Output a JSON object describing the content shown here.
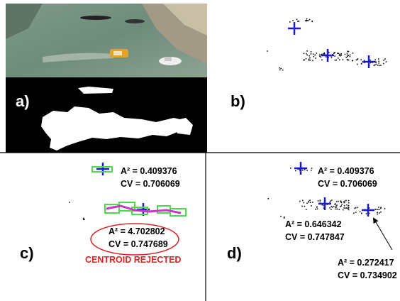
{
  "panels": {
    "a": {
      "label": "a)"
    },
    "b": {
      "label": "b)"
    },
    "c": {
      "label": "c)",
      "clusters": [
        {
          "a2": "A² = 0.409376",
          "cv": "CV = 0.706069"
        },
        {
          "a2": "A² = 4.702802",
          "cv": "CV = 0.747689",
          "status": "CENTROID REJECTED"
        }
      ]
    },
    "d": {
      "label": "d)",
      "clusters": [
        {
          "a2": "A² = 0.409376",
          "cv": "CV = 0.706069"
        },
        {
          "a2": "A² = 0.646342",
          "cv": "CV = 0.747847"
        },
        {
          "a2": "A² = 0.272417",
          "cv": "CV = 0.734902"
        }
      ]
    }
  }
}
